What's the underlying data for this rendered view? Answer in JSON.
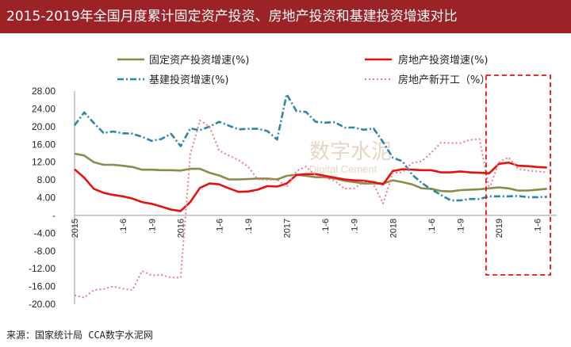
{
  "title": "2015-2019年全国月度累计固定资产投资、房地产投资和基建投资增速对比",
  "source": "来源：国家统计局  CCA数字水泥网",
  "watermark": {
    "main": "数字水泥",
    "sub": "Digital Cement"
  },
  "chart_data": {
    "type": "line",
    "ylim": [
      -20,
      28
    ],
    "yticks": [
      "28.00",
      "24.00",
      "20.00",
      "16.00",
      "12.00",
      "8.00",
      "4.00",
      "-",
      "-4.00",
      "-8.00",
      "-12.00",
      "-16.00",
      "-20.00"
    ],
    "ytick_values": [
      28,
      24,
      20,
      16,
      12,
      8,
      4,
      0,
      -4,
      -8,
      -12,
      -16,
      -20
    ],
    "xticks": [
      {
        "label": "2015",
        "x": 0,
        "year": true
      },
      {
        "label": ".1-6",
        "x": 5,
        "year": false
      },
      {
        "label": ".1-9",
        "x": 8,
        "year": false
      },
      {
        "label": "2016",
        "x": 11,
        "year": true
      },
      {
        "label": ".1-6",
        "x": 15,
        "year": false
      },
      {
        "label": ".1-9",
        "x": 18,
        "year": false
      },
      {
        "label": "2017",
        "x": 22,
        "year": true
      },
      {
        "label": ".1-6",
        "x": 26,
        "year": false
      },
      {
        "label": ".1-9",
        "x": 29,
        "year": false
      },
      {
        "label": "2018",
        "x": 33,
        "year": true
      },
      {
        "label": ".1-6",
        "x": 37,
        "year": false
      },
      {
        "label": ".1-9",
        "x": 40,
        "year": false
      },
      {
        "label": "2019",
        "x": 44,
        "year": true
      },
      {
        "label": ".1-6",
        "x": 48,
        "year": false
      }
    ],
    "series": [
      {
        "name": "固定资产投资增速(%)",
        "color": "#8b8b4a",
        "style": "solid",
        "x": [
          0,
          1,
          2,
          3,
          4,
          5,
          6,
          7,
          8,
          9,
          10,
          11,
          12,
          13,
          14,
          15,
          16,
          17,
          18,
          19,
          20,
          21,
          22,
          23,
          24,
          25,
          26,
          27,
          28,
          29,
          30,
          31,
          32,
          33,
          34,
          35,
          36,
          37,
          38,
          39,
          40,
          41,
          42,
          43,
          44,
          45,
          46,
          47,
          48,
          49
        ],
        "values": [
          13.9,
          13.5,
          12.0,
          11.4,
          11.4,
          11.2,
          10.9,
          10.3,
          10.3,
          10.2,
          10.2,
          10.1,
          10.5,
          10.5,
          9.6,
          9.0,
          8.1,
          8.1,
          8.2,
          8.3,
          8.3,
          8.1,
          8.9,
          9.2,
          8.9,
          8.6,
          8.6,
          8.3,
          7.8,
          7.5,
          7.2,
          7.2,
          7.2,
          7.9,
          7.5,
          7.0,
          6.1,
          6.0,
          5.5,
          5.4,
          5.7,
          5.8,
          5.9,
          6.1,
          6.3,
          6.1,
          5.6,
          5.6,
          5.8,
          6.0
        ]
      },
      {
        "name": "房地产投资增速(%)",
        "color": "#e8100f",
        "style": "solid",
        "x": [
          0,
          1,
          2,
          3,
          4,
          5,
          6,
          7,
          8,
          9,
          10,
          11,
          12,
          13,
          14,
          15,
          16,
          17,
          18,
          19,
          20,
          21,
          22,
          23,
          24,
          25,
          26,
          27,
          28,
          29,
          30,
          31,
          32,
          33,
          34,
          35,
          36,
          37,
          38,
          39,
          40,
          41,
          42,
          43,
          44,
          45,
          46,
          47,
          48,
          49
        ],
        "values": [
          10.4,
          8.5,
          6.0,
          5.1,
          4.6,
          4.3,
          3.8,
          3.0,
          2.6,
          2.0,
          1.3,
          1.0,
          3.0,
          6.2,
          7.2,
          7.0,
          6.1,
          5.3,
          5.4,
          5.8,
          6.6,
          6.5,
          7.2,
          9.1,
          9.3,
          9.3,
          8.9,
          8.5,
          8.1,
          7.9,
          7.8,
          7.5,
          7.0,
          10.0,
          10.4,
          10.3,
          10.2,
          10.2,
          9.7,
          9.7,
          9.9,
          9.7,
          9.6,
          9.5,
          11.6,
          11.9,
          11.2,
          11.1,
          10.9,
          10.8
        ]
      },
      {
        "name": "基建投资增速(%)",
        "color": "#2f85a8",
        "style": "dashdot",
        "x": [
          0,
          1,
          2,
          3,
          4,
          5,
          6,
          7,
          8,
          9,
          10,
          11,
          12,
          13,
          14,
          15,
          16,
          17,
          18,
          19,
          20,
          21,
          22,
          23,
          24,
          25,
          26,
          27,
          28,
          29,
          30,
          31,
          32,
          33,
          34,
          35,
          36,
          37,
          38,
          39,
          40,
          41,
          42,
          43,
          44,
          45,
          46,
          47,
          48,
          49
        ],
        "values": [
          20.3,
          23.2,
          20.8,
          18.6,
          18.9,
          18.5,
          18.4,
          17.7,
          16.8,
          17.2,
          18.4,
          15.6,
          19.6,
          19.2,
          20.0,
          21.1,
          20.2,
          19.4,
          19.5,
          19.5,
          19.0,
          17.1,
          27.3,
          23.5,
          23.3,
          21.1,
          20.9,
          21.0,
          19.8,
          19.8,
          19.3,
          19.6,
          16.5,
          13.0,
          12.2,
          9.2,
          7.3,
          5.9,
          4.6,
          3.4,
          3.4,
          3.7,
          3.7,
          4.3,
          4.3,
          4.3,
          4.4,
          4.1,
          4.1,
          4.2
        ]
      },
      {
        "name": "房地产新开工（%）",
        "color": "#ef7a85",
        "style": "dotted",
        "x": [
          0,
          1,
          2,
          3,
          4,
          5,
          6,
          7,
          8,
          9,
          10,
          11,
          12,
          13,
          14,
          15,
          16,
          17,
          18,
          19,
          20,
          21,
          22,
          23,
          24,
          25,
          26,
          27,
          28,
          29,
          30,
          31,
          32,
          33,
          34,
          35,
          36,
          37,
          38,
          39,
          40,
          41,
          42,
          43,
          44,
          45,
          46,
          47,
          48,
          49
        ],
        "values": [
          -18.0,
          -18.5,
          -16.8,
          -16.6,
          -16.0,
          -16.5,
          -16.8,
          -12.5,
          -13.5,
          -13.4,
          -14.0,
          -14.0,
          13.7,
          21.4,
          20.0,
          14.6,
          13.5,
          12.5,
          11.0,
          8.1,
          8.0,
          8.1,
          6.4,
          10.0,
          11.0,
          9.0,
          8.5,
          7.8,
          6.0,
          6.1,
          7.6,
          7.0,
          2.7,
          9.6,
          9.7,
          11.8,
          12.2,
          14.1,
          16.4,
          16.3,
          16.3,
          17.0,
          17.2,
          6.0,
          11.9,
          13.1,
          10.5,
          10.1,
          9.9,
          9.7
        ]
      }
    ],
    "legend": "top, two columns",
    "highlight_box": {
      "from_x": 43,
      "to_x": 50,
      "style": "dashed red"
    }
  }
}
